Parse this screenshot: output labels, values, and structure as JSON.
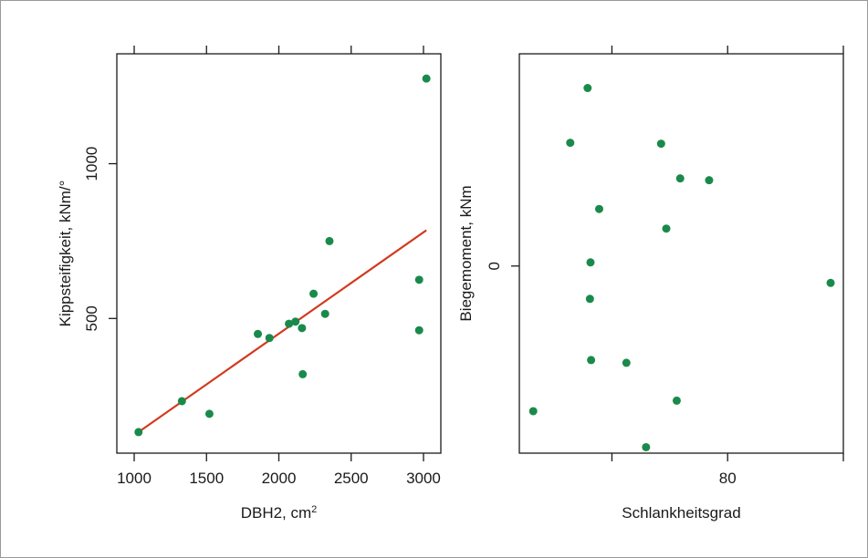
{
  "colors": {
    "point": "#1a8a4a",
    "fit_line": "#d23a1e",
    "axis": "#1a1a1a",
    "frame_border": "#9a9a9a"
  },
  "chart_data": [
    {
      "type": "scatter",
      "xlabel": "DBH2, cm",
      "xlabel_superscript": "2",
      "ylabel": "Kippsteifigkeit, kNm/°",
      "xlim": [
        880,
        3120
      ],
      "ylim": [
        65,
        1355
      ],
      "xticks": [
        1000,
        1500,
        2000,
        2500,
        3000
      ],
      "xtick_labels": [
        "1000",
        "1500",
        "2000",
        "2500",
        "3000"
      ],
      "yticks": [
        500,
        1000
      ],
      "ytick_labels": [
        "500",
        "1000"
      ],
      "top_ticks": true,
      "grid": false,
      "points": [
        {
          "x": 1030,
          "y": 133
        },
        {
          "x": 1330,
          "y": 233
        },
        {
          "x": 1520,
          "y": 192
        },
        {
          "x": 1855,
          "y": 450
        },
        {
          "x": 1935,
          "y": 437
        },
        {
          "x": 2070,
          "y": 483
        },
        {
          "x": 2115,
          "y": 490
        },
        {
          "x": 2160,
          "y": 469
        },
        {
          "x": 2165,
          "y": 320
        },
        {
          "x": 2240,
          "y": 580
        },
        {
          "x": 2320,
          "y": 515
        },
        {
          "x": 2350,
          "y": 750
        },
        {
          "x": 2970,
          "y": 625
        },
        {
          "x": 2970,
          "y": 462
        },
        {
          "x": 3020,
          "y": 1275
        }
      ],
      "fit_line": {
        "x": [
          1030,
          3020
        ],
        "y": [
          133,
          785
        ]
      }
    },
    {
      "type": "scatter",
      "xlabel": "Schlankheitsgrad",
      "ylabel": "Biegemoment, kNm",
      "xlim": [
        44,
        100
      ],
      "ylim": [
        -4.1,
        4.65
      ],
      "xticks": [
        60,
        80,
        100
      ],
      "xtick_labels": [
        "",
        "80",
        ""
      ],
      "yticks": [
        0
      ],
      "ytick_labels": [
        "0"
      ],
      "top_ticks": true,
      "grid": false,
      "points": [
        {
          "x": 55.8,
          "y": 3.9
        },
        {
          "x": 52.8,
          "y": 2.7
        },
        {
          "x": 68.5,
          "y": 2.68
        },
        {
          "x": 71.8,
          "y": 1.92
        },
        {
          "x": 76.8,
          "y": 1.88
        },
        {
          "x": 57.8,
          "y": 1.25
        },
        {
          "x": 69.4,
          "y": 0.82
        },
        {
          "x": 56.3,
          "y": 0.08
        },
        {
          "x": 97.8,
          "y": -0.37
        },
        {
          "x": 56.2,
          "y": -0.72
        },
        {
          "x": 56.4,
          "y": -2.06
        },
        {
          "x": 62.5,
          "y": -2.12
        },
        {
          "x": 71.2,
          "y": -2.95
        },
        {
          "x": 46.4,
          "y": -3.18
        },
        {
          "x": 65.9,
          "y": -3.97
        }
      ]
    }
  ]
}
